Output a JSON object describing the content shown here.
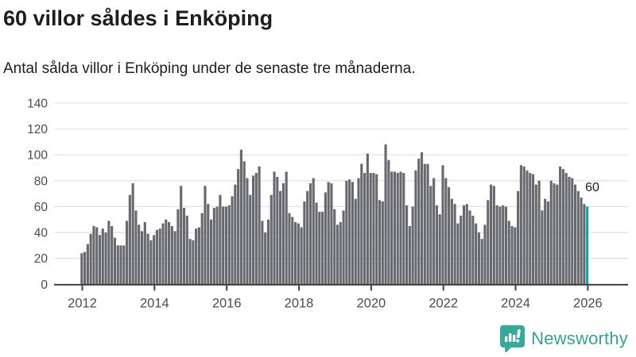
{
  "header": {
    "title": "60 villor såldes i Enköping",
    "subtitle": "Antal sålda villor i Enköping under de senaste tre månaderna."
  },
  "chart_data": {
    "type": "bar",
    "series_name": "Antal sålda villor (rullande tre månader)",
    "x_start": "2012-01",
    "x_end": "2026-01",
    "interval": "month",
    "values": [
      24,
      25,
      31,
      39,
      45,
      44,
      38,
      43,
      40,
      49,
      45,
      36,
      30,
      30,
      30,
      49,
      69,
      78,
      57,
      46,
      41,
      48,
      39,
      34,
      38,
      42,
      43,
      47,
      50,
      48,
      45,
      41,
      58,
      76,
      59,
      53,
      35,
      34,
      43,
      44,
      55,
      76,
      62,
      50,
      59,
      60,
      69,
      60,
      60,
      61,
      68,
      77,
      89,
      104,
      95,
      82,
      69,
      84,
      86,
      91,
      49,
      40,
      50,
      69,
      87,
      83,
      72,
      78,
      87,
      55,
      52,
      48,
      47,
      44,
      64,
      72,
      78,
      82,
      63,
      56,
      56,
      71,
      79,
      78,
      58,
      46,
      48,
      57,
      80,
      81,
      79,
      66,
      82,
      93,
      86,
      101,
      86,
      86,
      85,
      65,
      64,
      108,
      96,
      87,
      87,
      86,
      87,
      86,
      61,
      45,
      60,
      88,
      97,
      102,
      93,
      93,
      76,
      82,
      61,
      54,
      92,
      82,
      75,
      66,
      62,
      47,
      53,
      61,
      62,
      57,
      53,
      47,
      40,
      35,
      46,
      65,
      77,
      76,
      61,
      60,
      61,
      60,
      49,
      45,
      44,
      72,
      92,
      91,
      88,
      86,
      85,
      77,
      80,
      57,
      66,
      64,
      80,
      78,
      77,
      91,
      89,
      86,
      83,
      82,
      77,
      72,
      67,
      62,
      60
    ],
    "highlight": {
      "index": 168,
      "value": 60,
      "label": "60",
      "color": "#0ba5a2"
    },
    "bar_color": "#68686f",
    "grid": true,
    "gridline_color": "#e3e3e3",
    "axis_color": "#3f3f3f",
    "tick_label_color": "#4c4c4c",
    "ylim": [
      0,
      140
    ],
    "yticks": [
      "0",
      "20",
      "40",
      "60",
      "80",
      "100",
      "120",
      "140"
    ],
    "xticks": [
      "2012",
      "2014",
      "2016",
      "2018",
      "2020",
      "2022",
      "2024",
      "2026"
    ],
    "xlabel": "",
    "ylabel": "",
    "legend": "none"
  },
  "footer": {
    "brand": "Newsworthy",
    "brand_color": "#3b9e95",
    "logo_icon_color": "#3aa79b"
  }
}
